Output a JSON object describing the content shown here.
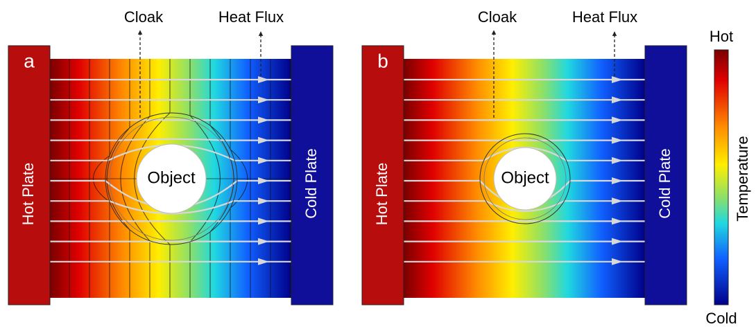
{
  "panels": [
    {
      "label": "a",
      "cloak": "Cloak",
      "heat_flux": "Heat Flux",
      "hot_plate": "Hot Plate",
      "cold_plate": "Cold Plate",
      "object": "Object"
    },
    {
      "label": "b",
      "cloak": "Cloak",
      "heat_flux": "Heat Flux",
      "hot_plate": "Hot Plate",
      "cold_plate": "Cold Plate",
      "object": "Object"
    }
  ],
  "colorbar": {
    "hot": "Hot",
    "cold": "Cold",
    "title": "Temperature"
  }
}
